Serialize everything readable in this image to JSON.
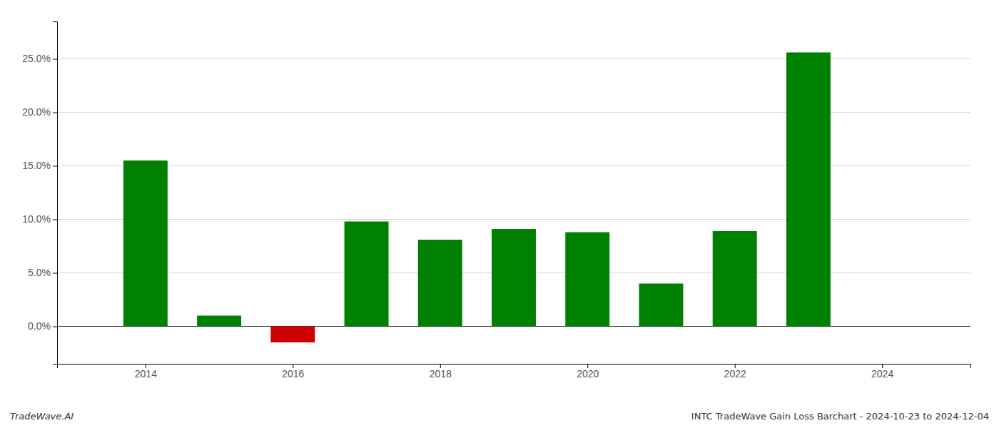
{
  "chart_data": {
    "type": "bar",
    "x": [
      2014,
      2015,
      2016,
      2017,
      2018,
      2019,
      2020,
      2021,
      2022,
      2023
    ],
    "values": [
      0.155,
      0.01,
      -0.015,
      0.098,
      0.081,
      0.091,
      0.088,
      0.04,
      0.089,
      0.256
    ],
    "colors": [
      "#008000",
      "#008000",
      "#cc0000",
      "#008000",
      "#008000",
      "#008000",
      "#008000",
      "#008000",
      "#008000",
      "#008000"
    ],
    "xlim": [
      2012.8,
      2025.2
    ],
    "xticks": [
      2014,
      2016,
      2018,
      2020,
      2022,
      2024
    ],
    "ylim": [
      -0.035,
      0.285
    ],
    "yticks": [
      {
        "value": 0.0,
        "label": "0.0%"
      },
      {
        "value": 0.05,
        "label": "5.0%"
      },
      {
        "value": 0.1,
        "label": "10.0%"
      },
      {
        "value": 0.15,
        "label": "15.0%"
      },
      {
        "value": 0.2,
        "label": "20.0%"
      },
      {
        "value": 0.25,
        "label": "25.0%"
      }
    ],
    "grid": true,
    "annotations": [
      "TradeWave.AI",
      "INTC TradeWave Gain Loss Barchart - 2024-10-23 to 2024-12-04"
    ]
  }
}
